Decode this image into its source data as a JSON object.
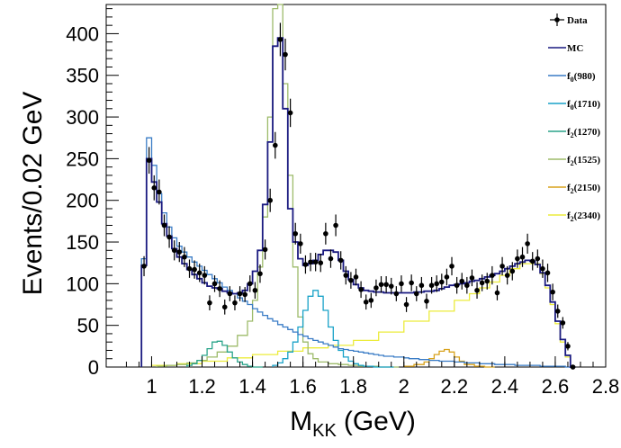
{
  "chart_data": {
    "type": "line",
    "xlabel_main": "M",
    "xlabel_sub": "KK",
    "xlabel_unit": "(GeV)",
    "ylabel": "Events/0.02 GeV",
    "xlim": [
      0.82,
      2.8
    ],
    "ylim": [
      0,
      435
    ],
    "x_ticks": [
      1,
      1.2,
      1.4,
      1.6,
      1.8,
      2,
      2.2,
      2.4,
      2.6,
      2.8
    ],
    "x_tick_labels": [
      "1",
      "1.2",
      "1.4",
      "1.6",
      "1.8",
      "2",
      "2.2",
      "2.4",
      "2.6",
      "2.8"
    ],
    "y_ticks": [
      0,
      50,
      100,
      150,
      200,
      250,
      300,
      350,
      400
    ],
    "y_tick_labels": [
      "0",
      "50",
      "100",
      "150",
      "200",
      "250",
      "300",
      "350",
      "400"
    ],
    "legend_position": "right",
    "legend": [
      {
        "label_main": "Data",
        "label_sub": "",
        "label_tail": "",
        "style": "marker",
        "color": "#000000"
      },
      {
        "label_main": "MC",
        "label_sub": "",
        "label_tail": "",
        "style": "line",
        "color": "#1a1a80"
      },
      {
        "label_main": "f",
        "label_sub": "0",
        "label_tail": "(980)",
        "style": "line",
        "color": "#3a7cc6"
      },
      {
        "label_main": "f",
        "label_sub": "0",
        "label_tail": "(1710)",
        "style": "line",
        "color": "#19a2c8"
      },
      {
        "label_main": "f",
        "label_sub": "2",
        "label_tail": "(1270)",
        "style": "line",
        "color": "#2aa48a"
      },
      {
        "label_main": "f",
        "label_sub": "2",
        "label_tail": "(1525)",
        "style": "line",
        "color": "#9dbb6a"
      },
      {
        "label_main": "f",
        "label_sub": "2",
        "label_tail": "(2150)",
        "style": "line",
        "color": "#d8a21c"
      },
      {
        "label_main": "f",
        "label_sub": "2",
        "label_tail": "(2340)",
        "style": "line",
        "color": "#ecec3c"
      }
    ],
    "data_points": {
      "x": [
        0.97,
        0.99,
        1.01,
        1.03,
        1.05,
        1.07,
        1.09,
        1.11,
        1.13,
        1.15,
        1.17,
        1.19,
        1.21,
        1.23,
        1.25,
        1.27,
        1.29,
        1.31,
        1.33,
        1.35,
        1.37,
        1.39,
        1.41,
        1.43,
        1.45,
        1.47,
        1.49,
        1.51,
        1.53,
        1.55,
        1.57,
        1.59,
        1.61,
        1.63,
        1.65,
        1.67,
        1.69,
        1.71,
        1.73,
        1.75,
        1.77,
        1.79,
        1.81,
        1.83,
        1.85,
        1.87,
        1.89,
        1.91,
        1.93,
        1.95,
        1.97,
        1.99,
        2.01,
        2.03,
        2.05,
        2.07,
        2.09,
        2.11,
        2.13,
        2.15,
        2.17,
        2.19,
        2.21,
        2.23,
        2.25,
        2.27,
        2.29,
        2.31,
        2.33,
        2.35,
        2.37,
        2.39,
        2.41,
        2.43,
        2.45,
        2.47,
        2.49,
        2.51,
        2.53,
        2.55,
        2.57,
        2.59,
        2.61,
        2.63,
        2.65,
        2.67
      ],
      "y": [
        121,
        248,
        215,
        210,
        170,
        156,
        140,
        138,
        132,
        118,
        117,
        113,
        110,
        77,
        100,
        94,
        72,
        88,
        77,
        88,
        87,
        100,
        92,
        112,
        141,
        200,
        266,
        393,
        375,
        305,
        160,
        148,
        123,
        126,
        126,
        125,
        160,
        130,
        170,
        128,
        110,
        104,
        108,
        93,
        78,
        80,
        95,
        99,
        99,
        97,
        88,
        100,
        75,
        101,
        88,
        98,
        79,
        98,
        100,
        102,
        108,
        121,
        98,
        103,
        98,
        107,
        92,
        101,
        103,
        110,
        89,
        121,
        110,
        115,
        130,
        132,
        148,
        127,
        130,
        118,
        113,
        90,
        67,
        53,
        25,
        0
      ],
      "err": [
        12,
        16,
        15,
        15,
        13,
        13,
        12,
        12,
        12,
        11,
        11,
        11,
        11,
        9,
        10,
        10,
        9,
        9,
        9,
        9,
        9,
        10,
        10,
        11,
        12,
        14,
        16,
        20,
        19,
        17,
        13,
        12,
        11,
        11,
        11,
        11,
        13,
        11,
        13,
        11,
        11,
        10,
        10,
        10,
        9,
        9,
        10,
        10,
        10,
        10,
        9,
        10,
        9,
        10,
        9,
        10,
        9,
        10,
        10,
        10,
        10,
        11,
        10,
        10,
        10,
        10,
        10,
        10,
        10,
        11,
        9,
        11,
        11,
        11,
        11,
        12,
        12,
        11,
        11,
        11,
        11,
        10,
        8,
        7,
        5,
        0
      ]
    },
    "series": [
      {
        "name": "MC",
        "color": "#1a1a80",
        "bin_edges": [
          0.96,
          0.98,
          1.0,
          1.02,
          1.04,
          1.06,
          1.08,
          1.1,
          1.12,
          1.14,
          1.16,
          1.18,
          1.2,
          1.22,
          1.24,
          1.26,
          1.28,
          1.3,
          1.32,
          1.34,
          1.36,
          1.38,
          1.4,
          1.42,
          1.44,
          1.46,
          1.48,
          1.5,
          1.52,
          1.54,
          1.56,
          1.58,
          1.6,
          1.62,
          1.64,
          1.66,
          1.68,
          1.7,
          1.72,
          1.74,
          1.76,
          1.78,
          1.8,
          1.82,
          1.84,
          1.86,
          1.88,
          1.9,
          1.92,
          1.94,
          1.96,
          1.98,
          2.0,
          2.02,
          2.04,
          2.06,
          2.08,
          2.1,
          2.12,
          2.14,
          2.16,
          2.18,
          2.2,
          2.22,
          2.24,
          2.26,
          2.28,
          2.3,
          2.32,
          2.34,
          2.36,
          2.38,
          2.4,
          2.42,
          2.44,
          2.46,
          2.48,
          2.5,
          2.52,
          2.54,
          2.56,
          2.58,
          2.6,
          2.62,
          2.64,
          2.66,
          2.68
        ],
        "values": [
          122,
          250,
          222,
          198,
          172,
          157,
          142,
          132,
          124,
          117,
          111,
          106,
          101,
          97,
          95,
          94,
          91,
          89,
          88,
          89,
          92,
          100,
          115,
          140,
          195,
          270,
          385,
          395,
          310,
          190,
          150,
          130,
          122,
          124,
          128,
          135,
          140,
          140,
          138,
          128,
          115,
          105,
          99,
          95,
          92,
          91,
          90,
          90,
          89,
          89,
          89,
          89,
          89,
          89,
          90,
          90,
          91,
          91,
          92,
          94,
          96,
          98,
          99,
          100,
          101,
          103,
          104,
          106,
          108,
          110,
          112,
          115,
          118,
          121,
          124,
          126,
          128,
          127,
          123,
          113,
          98,
          78,
          55,
          33,
          14,
          0
        ]
      },
      {
        "name": "f0(980)",
        "color": "#3a7cc6",
        "bin_edges": [
          0.96,
          0.98,
          1.0,
          1.02,
          1.04,
          1.06,
          1.08,
          1.1,
          1.12,
          1.14,
          1.16,
          1.18,
          1.2,
          1.22,
          1.24,
          1.26,
          1.28,
          1.3,
          1.32,
          1.34,
          1.36,
          1.38,
          1.4,
          1.42,
          1.44,
          1.46,
          1.48,
          1.5,
          1.52,
          1.54,
          1.56,
          1.58,
          1.6,
          1.62,
          1.64,
          1.66,
          1.68,
          1.7,
          1.72,
          1.74,
          1.76,
          1.78,
          1.8,
          1.82,
          1.84,
          1.86,
          1.88,
          1.9,
          1.92,
          1.94,
          1.96,
          1.98,
          2.0,
          2.02,
          2.04,
          2.06,
          2.08,
          2.1,
          2.12,
          2.14,
          2.16,
          2.18,
          2.2,
          2.22,
          2.24,
          2.26,
          2.28,
          2.3,
          2.32,
          2.34,
          2.36,
          2.38,
          2.4,
          2.42,
          2.44,
          2.46,
          2.48,
          2.5,
          2.52,
          2.54,
          2.56,
          2.58,
          2.6,
          2.62,
          2.64,
          2.66,
          2.68
        ],
        "values": [
          130,
          275,
          242,
          208,
          185,
          168,
          155,
          145,
          138,
          132,
          126,
          121,
          116,
          111,
          106,
          101,
          96,
          92,
          88,
          83,
          79,
          75,
          70,
          66,
          62,
          58,
          55,
          51,
          48,
          45,
          42,
          39,
          37,
          34,
          32,
          30,
          28,
          26,
          24,
          22,
          21,
          20,
          19,
          18,
          17,
          16,
          15,
          14,
          13,
          13,
          12,
          12,
          11,
          10,
          10,
          9,
          9,
          8,
          8,
          7,
          7,
          7,
          6,
          6,
          5,
          5,
          5,
          4,
          4,
          4,
          3,
          3,
          3,
          3,
          2,
          2,
          2,
          2,
          2,
          1,
          1,
          1,
          1,
          1,
          0,
          0
        ]
      },
      {
        "name": "f0(1710)",
        "color": "#19a2c8",
        "bin_edges": [
          1.48,
          1.5,
          1.52,
          1.54,
          1.56,
          1.58,
          1.6,
          1.62,
          1.64,
          1.66,
          1.68,
          1.7,
          1.72,
          1.74,
          1.76,
          1.78,
          1.8,
          1.82,
          1.84,
          1.86,
          1.88,
          1.9,
          1.92,
          1.94,
          1.96
        ],
        "values": [
          2,
          5,
          10,
          18,
          30,
          48,
          68,
          85,
          92,
          85,
          68,
          48,
          32,
          20,
          12,
          7,
          4,
          2,
          1,
          1,
          0,
          0,
          0,
          0
        ]
      },
      {
        "name": "f2(1270)",
        "color": "#2aa48a",
        "bin_edges": [
          1.14,
          1.16,
          1.18,
          1.2,
          1.22,
          1.24,
          1.26,
          1.28,
          1.3,
          1.32,
          1.34,
          1.36,
          1.38,
          1.4,
          1.42,
          1.44
        ],
        "values": [
          2,
          4,
          8,
          14,
          22,
          30,
          31,
          26,
          18,
          11,
          6,
          3,
          1,
          0,
          0
        ]
      },
      {
        "name": "f2(1525)",
        "color": "#9dbb6a",
        "bin_edges": [
          1.02,
          1.06,
          1.1,
          1.14,
          1.18,
          1.22,
          1.26,
          1.3,
          1.34,
          1.38,
          1.4,
          1.42,
          1.44,
          1.46,
          1.48,
          1.5,
          1.52,
          1.54,
          1.56,
          1.58,
          1.6,
          1.62,
          1.64,
          1.66,
          1.7,
          1.74,
          1.78,
          1.82,
          1.86,
          1.9,
          1.94,
          1.98
        ],
        "values": [
          1,
          2,
          3,
          5,
          8,
          12,
          18,
          25,
          38,
          55,
          80,
          120,
          180,
          300,
          430,
          435,
          340,
          230,
          120,
          60,
          30,
          16,
          10,
          6,
          4,
          3,
          2,
          1,
          1,
          0,
          0
        ]
      },
      {
        "name": "f2(2150)",
        "color": "#d8a21c",
        "bin_edges": [
          2.0,
          2.04,
          2.08,
          2.1,
          2.12,
          2.14,
          2.16,
          2.18,
          2.2,
          2.22,
          2.24,
          2.28,
          2.32,
          2.36
        ],
        "values": [
          1,
          3,
          6,
          10,
          15,
          19,
          21,
          18,
          12,
          7,
          3,
          1,
          0
        ]
      },
      {
        "name": "f2(2340)",
        "color": "#ecec3c",
        "bin_edges": [
          1.0,
          1.1,
          1.2,
          1.3,
          1.4,
          1.5,
          1.6,
          1.7,
          1.8,
          1.9,
          2.0,
          2.1,
          2.2,
          2.26,
          2.3,
          2.34,
          2.38,
          2.42,
          2.46,
          2.5,
          2.54,
          2.56,
          2.58,
          2.6,
          2.62,
          2.64,
          2.66,
          2.68
        ],
        "values": [
          2,
          4,
          7,
          11,
          15,
          19,
          23,
          26,
          32,
          42,
          55,
          67,
          80,
          88,
          95,
          102,
          110,
          118,
          124,
          124,
          112,
          95,
          75,
          52,
          30,
          12,
          0
        ]
      }
    ]
  }
}
